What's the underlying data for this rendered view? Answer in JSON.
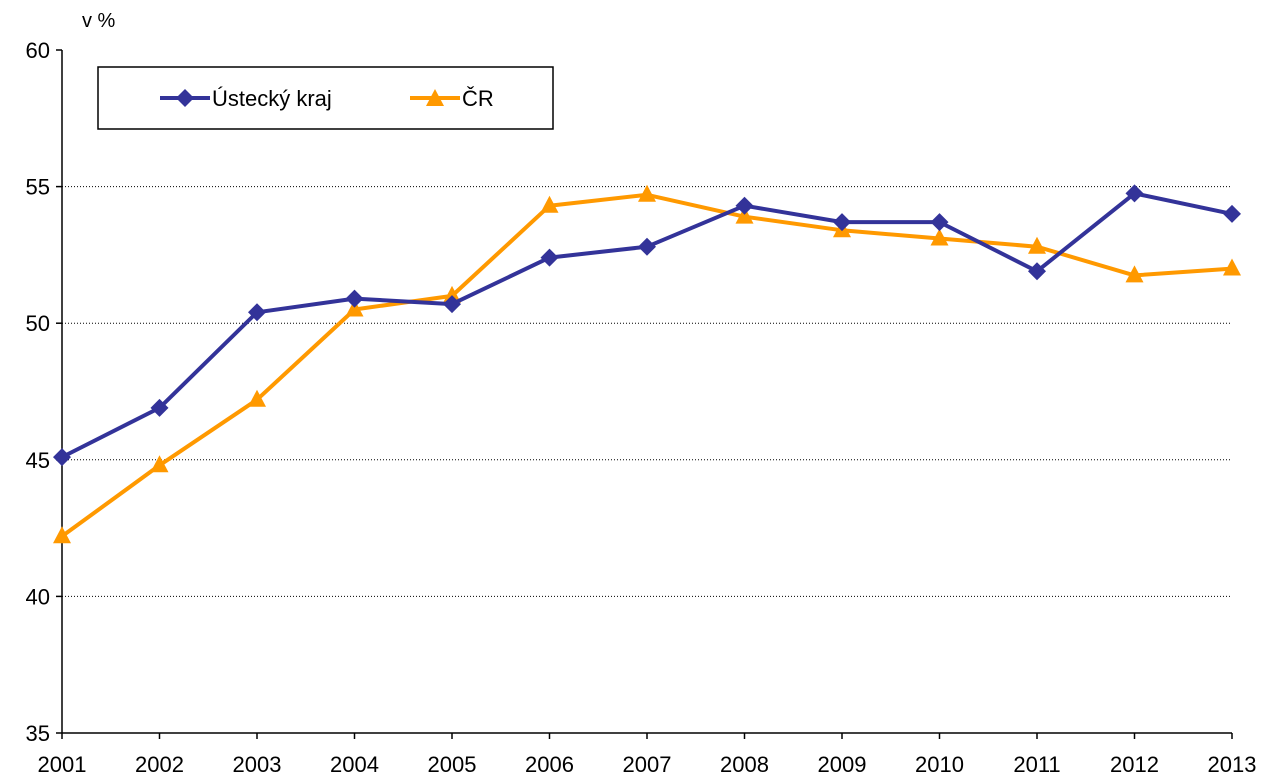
{
  "chart_data": {
    "type": "line",
    "title": "",
    "xlabel": "",
    "ylabel": "v %",
    "x": [
      "2001",
      "2002",
      "2003",
      "2004",
      "2005",
      "2006",
      "2007",
      "2008",
      "2009",
      "2010",
      "2011",
      "2012",
      "2013"
    ],
    "yticks": [
      "35",
      "40",
      "45",
      "50",
      "55",
      "60"
    ],
    "ylim": [
      35,
      60
    ],
    "grid": "horizontal-dotted",
    "legend_position": "top-left",
    "series": [
      {
        "name": "Ústecký kraj",
        "color": "#333399",
        "marker": "diamond",
        "values": [
          45.1,
          46.9,
          50.4,
          50.9,
          50.7,
          52.4,
          52.8,
          54.3,
          53.7,
          53.7,
          51.9,
          54.75,
          54.0
        ]
      },
      {
        "name": "ČR",
        "color": "#FF9900",
        "marker": "triangle",
        "values": [
          42.2,
          44.8,
          47.2,
          50.5,
          51.0,
          54.3,
          54.7,
          53.9,
          53.4,
          53.1,
          52.8,
          51.75,
          52.0
        ]
      }
    ]
  }
}
